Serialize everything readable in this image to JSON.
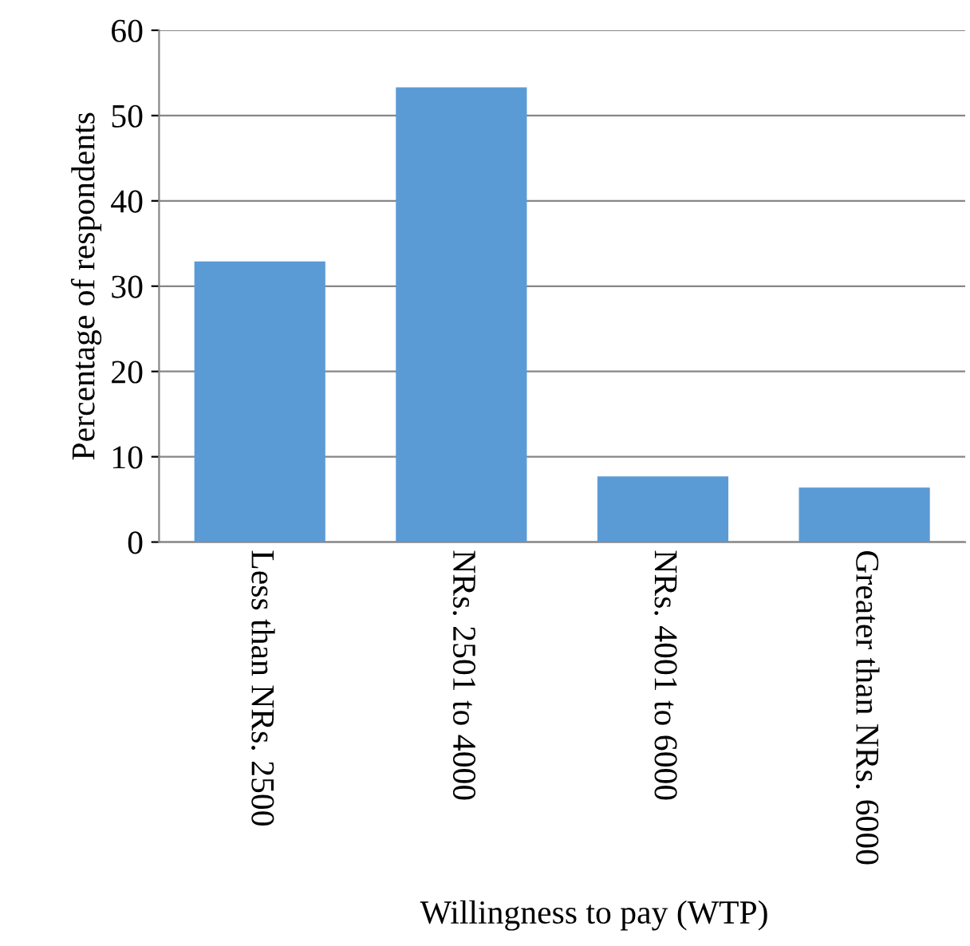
{
  "chart_data": {
    "type": "bar",
    "xlabel": "Willingness to pay (WTP)",
    "ylabel": "Percentage of respondents",
    "categories": [
      "Less than NRs. 2500",
      "NRs. 2501 to 4000",
      "NRs. 4001 to 6000",
      "Greater than NRs. 6000"
    ],
    "values": [
      32.9,
      53.3,
      7.7,
      6.4
    ],
    "color": "#5b9bd5",
    "ylim": [
      0,
      60
    ],
    "yticks": [
      0,
      10,
      20,
      30,
      40,
      50,
      60
    ],
    "grid": "y",
    "legend": false
  }
}
